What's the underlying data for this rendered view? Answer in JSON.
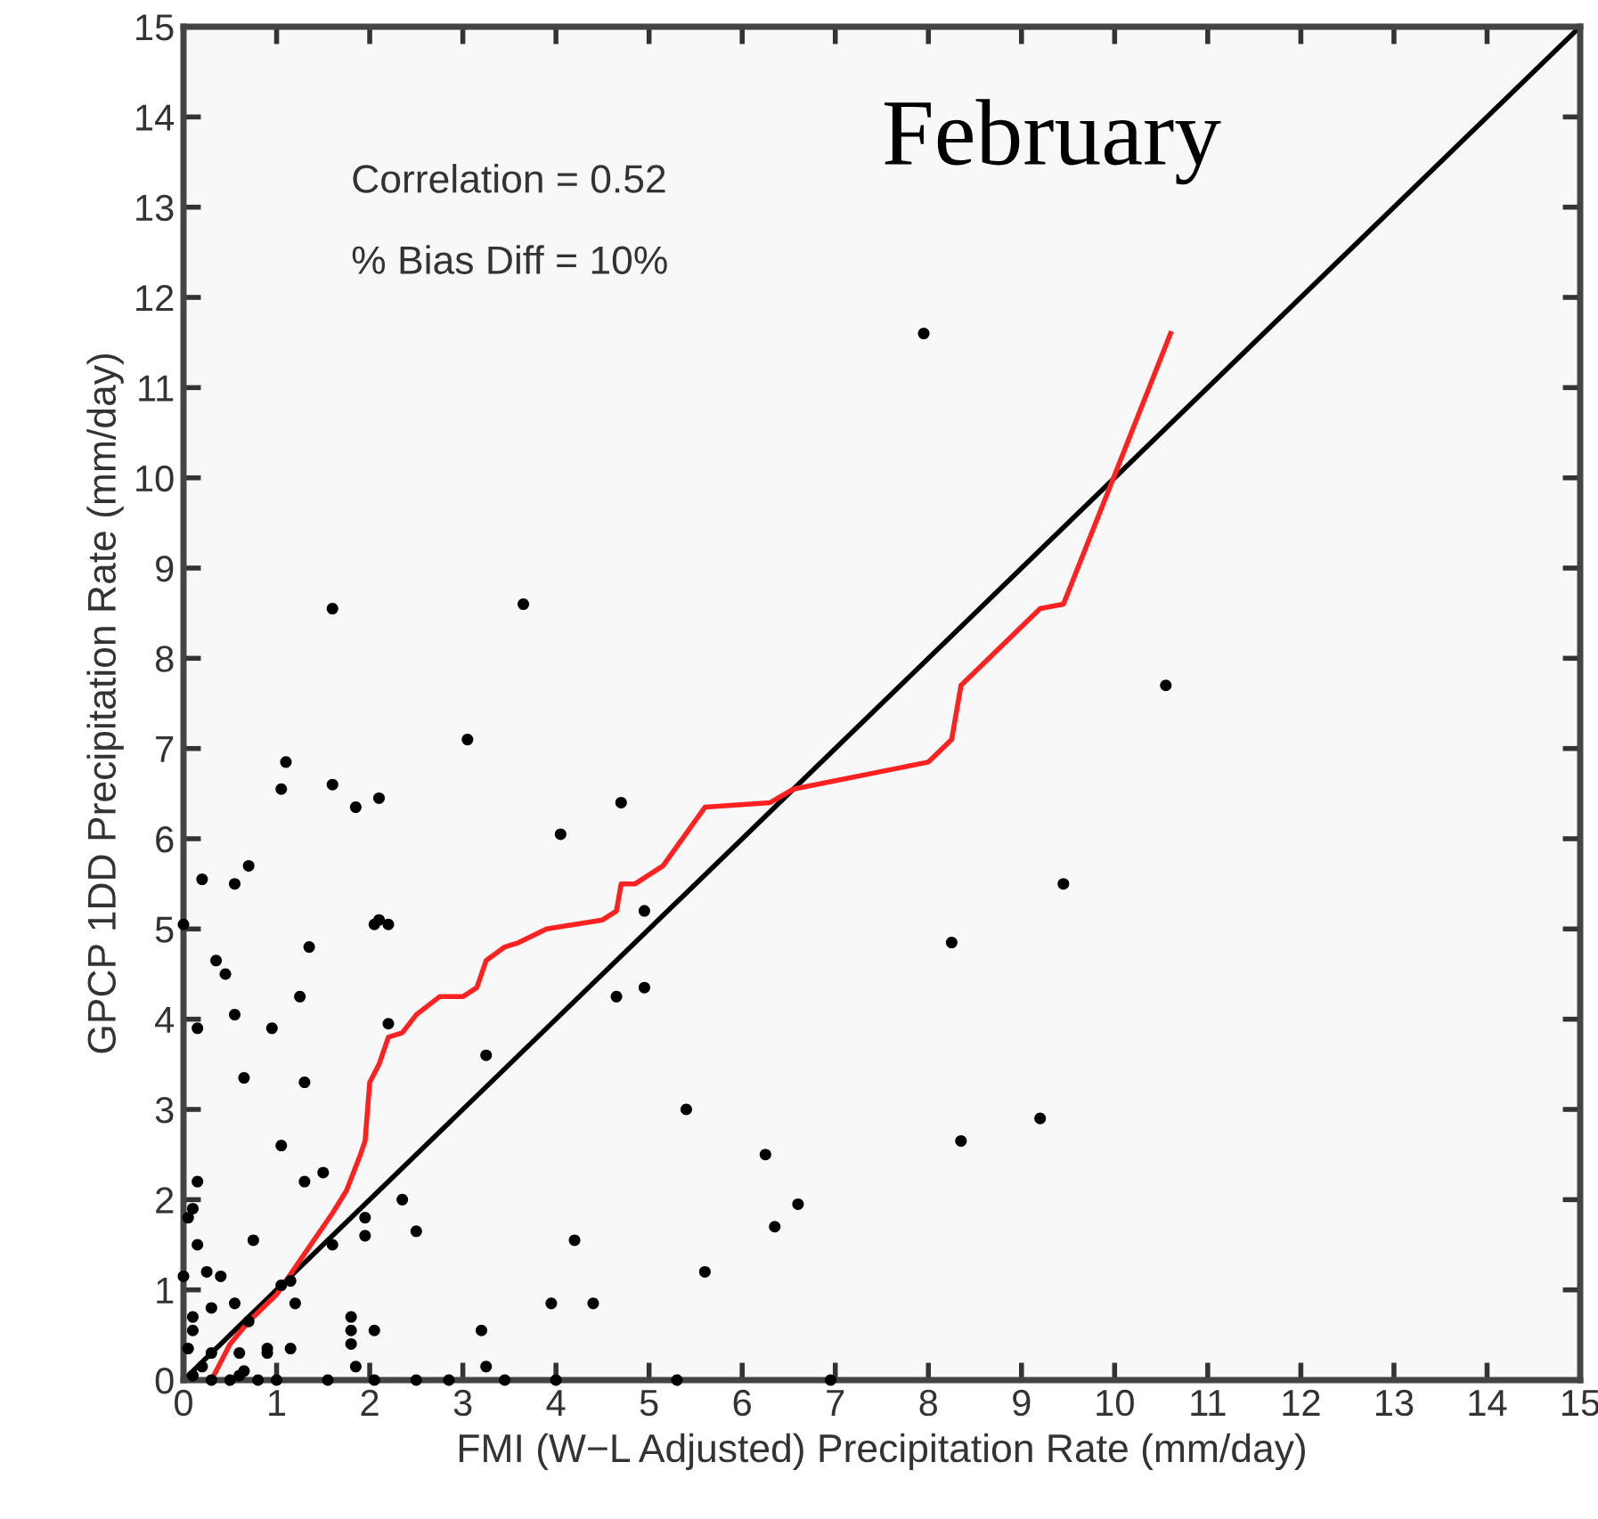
{
  "chart_data": {
    "type": "scatter",
    "title": "February",
    "xlabel": "FMI (W−L Adjusted) Precipitation Rate (mm/day)",
    "ylabel": "GPCP 1DD Precipitation Rate (mm/day)",
    "annotations": [
      "Correlation = 0.52",
      "% Bias Diff = 10%"
    ],
    "xlim": [
      0,
      15
    ],
    "ylim": [
      0,
      15
    ],
    "xticks": [
      0,
      1,
      2,
      3,
      4,
      5,
      6,
      7,
      8,
      9,
      10,
      11,
      12,
      13,
      14,
      15
    ],
    "yticks": [
      0,
      1,
      2,
      3,
      4,
      5,
      6,
      7,
      8,
      9,
      10,
      11,
      12,
      13,
      14,
      15
    ],
    "grid": false,
    "legend": false,
    "series": [
      {
        "color": "#000000",
        "marker": "circle",
        "x": [
          7.95,
          10.55,
          9.45,
          8.25,
          9.2,
          8.35,
          6.25,
          6.6,
          6.35,
          5.4,
          5.6,
          4.95,
          4.95,
          4.7,
          4.65,
          4.05,
          4.2,
          4.4,
          3.95,
          3.65,
          3.05,
          3.25,
          3.2,
          3.25,
          3.45,
          2.85,
          2.5,
          2.5,
          2.35,
          2.2,
          2.2,
          2.05,
          2.1,
          2.1,
          1.85,
          1.6,
          1.6,
          1.05,
          1.1,
          1.35,
          1.25,
          1.3,
          1.05,
          0.95,
          0.65,
          0.55,
          0.45,
          0.35,
          0.2,
          0.55,
          0.7,
          0.0,
          0.15,
          0.15,
          0.1,
          0.05,
          0.15,
          1.5,
          1.3,
          1.95,
          1.95,
          1.6,
          1.8,
          1.8,
          1.8,
          2.05,
          1.85,
          1.55,
          1.0,
          1.2,
          0.75,
          0.55,
          0.7,
          1.05,
          0.25,
          0.4,
          0.3,
          0.1,
          0.1,
          0.0,
          0.05,
          0.3,
          0.6,
          0.65,
          0.8,
          0.9,
          1.15,
          0.3,
          0.5,
          0.6,
          0.2,
          0.1,
          4.0,
          5.3,
          6.95,
          2.05,
          1.15,
          0.9
        ],
        "values": [
          11.6,
          7.7,
          5.5,
          4.85,
          2.9,
          2.65,
          2.5,
          1.95,
          1.7,
          3.0,
          1.2,
          4.35,
          5.2,
          6.4,
          4.25,
          6.05,
          1.55,
          0.85,
          0.85,
          8.6,
          7.1,
          3.6,
          0.55,
          0.15,
          0,
          0,
          0,
          1.65,
          2.0,
          5.05,
          3.95,
          5.05,
          5.1,
          6.45,
          6.35,
          6.6,
          8.55,
          6.55,
          6.85,
          4.8,
          4.25,
          3.3,
          2.6,
          3.9,
          3.35,
          4.05,
          4.5,
          4.65,
          5.55,
          5.5,
          5.7,
          5.05,
          3.9,
          2.2,
          1.9,
          1.8,
          1.5,
          2.3,
          2.2,
          1.8,
          1.6,
          1.5,
          0.7,
          0.55,
          0.4,
          0.55,
          0.15,
          0,
          0,
          0.85,
          1.55,
          0.85,
          0.65,
          1.05,
          1.2,
          1.15,
          0.8,
          0.55,
          0.7,
          1.15,
          0.35,
          0.3,
          0.3,
          0.1,
          0,
          0.3,
          1.1,
          0,
          0,
          0.05,
          0.15,
          0.05,
          0,
          0,
          0,
          0,
          0.35,
          0.35
        ]
      },
      {
        "type": "line",
        "color": "#000000",
        "x": [
          0,
          15
        ],
        "values": [
          0,
          15
        ]
      },
      {
        "type": "line",
        "color": "#ff2020",
        "x": [
          0,
          0.3,
          0.5,
          0.7,
          1.0,
          1.3,
          1.6,
          1.75,
          1.9,
          1.95,
          2.0,
          2.1,
          2.2,
          2.35,
          2.5,
          2.75,
          3.0,
          3.15,
          3.25,
          3.45,
          3.6,
          3.9,
          4.2,
          4.5,
          4.65,
          4.7,
          4.85,
          5.15,
          5.6,
          6.3,
          6.55,
          8.0,
          8.25,
          8.35,
          9.2,
          9.45,
          9.95,
          10.6
        ],
        "values": [
          0,
          0,
          0.4,
          0.65,
          0.95,
          1.4,
          1.85,
          2.1,
          2.5,
          2.65,
          3.3,
          3.5,
          3.8,
          3.85,
          4.05,
          4.25,
          4.25,
          4.35,
          4.65,
          4.8,
          4.85,
          5.0,
          5.05,
          5.1,
          5.2,
          5.5,
          5.5,
          5.7,
          6.35,
          6.4,
          6.55,
          6.85,
          7.1,
          7.7,
          8.55,
          8.6,
          9.9,
          11.6
        ]
      }
    ]
  }
}
